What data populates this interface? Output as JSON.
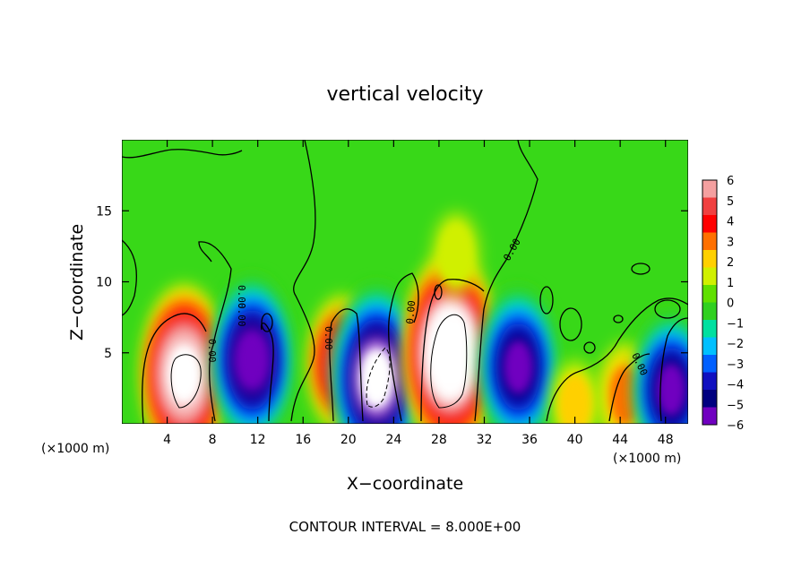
{
  "chart_data": {
    "type": "heatmap",
    "title": "vertical velocity",
    "xlabel": "X−coordinate",
    "ylabel": "Z−coordinate",
    "x_unit_left": "(×1000 m)",
    "x_unit_right": "(×1000 m)",
    "footer": "CONTOUR INTERVAL = 8.000E+00",
    "xlim": [
      0,
      50
    ],
    "ylim": [
      0,
      20
    ],
    "x_ticks": [
      "4",
      "8",
      "12",
      "16",
      "20",
      "24",
      "28",
      "32",
      "36",
      "40",
      "44",
      "48"
    ],
    "x_tick_values": [
      4,
      8,
      12,
      16,
      20,
      24,
      28,
      32,
      36,
      40,
      44,
      48
    ],
    "y_ticks": [
      "5",
      "10",
      "15"
    ],
    "y_tick_values": [
      5,
      10,
      15
    ],
    "contour_labels": [
      "0.00",
      "0.00",
      "0.00",
      "0.00",
      "0.00",
      "0.00",
      "0.00"
    ],
    "contour_interval": 8.0,
    "colorbar": {
      "labels": [
        "6",
        "5",
        "4",
        "3",
        "2",
        "1",
        "0",
        "−1",
        "−2",
        "−3",
        "−4",
        "−5",
        "−6"
      ],
      "values": [
        6,
        5,
        4,
        3,
        2,
        1,
        0,
        -1,
        -2,
        -3,
        -4,
        -5,
        -6
      ],
      "colors": [
        "#f4a0a0",
        "#f04040",
        "#ff0000",
        "#ff7000",
        "#ffd000",
        "#d0f000",
        "#60e000",
        "#30d020",
        "#00e0a0",
        "#00c0ff",
        "#0060ff",
        "#1010c0",
        "#000080",
        "#7000c0"
      ]
    },
    "features": [
      {
        "kind": "updraft",
        "x": 5.5,
        "z": 3.5,
        "w_max": 8.5
      },
      {
        "kind": "downdraft",
        "x": 11.5,
        "z": 4.5,
        "w_min": -7.5
      },
      {
        "kind": "updraft",
        "x": 19.5,
        "z": 4.2,
        "w_max": 5.5
      },
      {
        "kind": "downdraft",
        "x": 22.5,
        "z": 3.2,
        "w_min": -9.0
      },
      {
        "kind": "updraft",
        "x": 29.0,
        "z": 5.0,
        "w_max": 10.0
      },
      {
        "kind": "downdraft",
        "x": 35.0,
        "z": 4.0,
        "w_min": -7.0
      },
      {
        "kind": "updraft",
        "x": 44.5,
        "z": 2.0,
        "w_max": 3.2
      },
      {
        "kind": "updraft",
        "x": 40.0,
        "z": 1.4,
        "w_max": 1.8
      },
      {
        "kind": "downdraft",
        "x": 48.5,
        "z": 2.4,
        "w_min": -6.5
      },
      {
        "kind": "updraft",
        "x": 29.5,
        "z": 12.0,
        "w_max": 1.4
      }
    ]
  }
}
